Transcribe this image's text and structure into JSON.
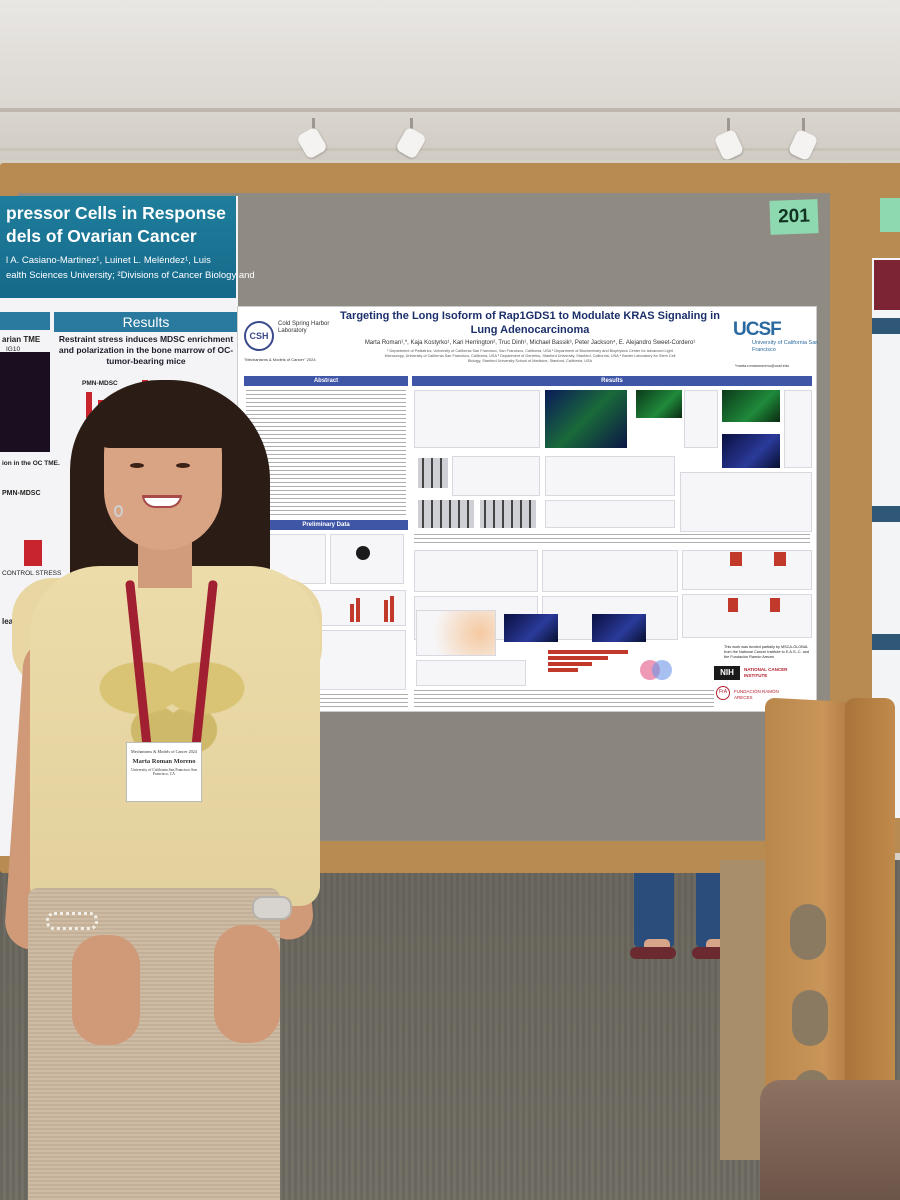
{
  "board": {
    "number": "201"
  },
  "left_poster": {
    "title_line1": "pressor Cells in Response",
    "title_line2": "dels of Ovarian Cancer",
    "authors": "l A. Casiano-Martinez¹, Luinet L. Meléndez¹, Luis",
    "affiliation": "ealth Sciences University; ²Divisions of Cancer Biology and",
    "results_label": "Results",
    "subhead": "Restraint stress induces MDSC enrichment and polarization in the bone marrow of OC-tumor-bearing mice",
    "side_label_1": "arian TME",
    "side_label_2": "IG10",
    "side_label_3": "PMN-MDSC",
    "side_label_4": "ion in the OC TME.",
    "side_label_5": "CONTROL  STRESS",
    "side_label_6": "lear M",
    "mid_label": "PMN-MDSC"
  },
  "poster": {
    "title": "Targeting the Long Isoform of Rap1GDS1 to Modulate KRAS Signaling in Lung Adenocarcinoma",
    "authors": "Marta Roman¹,*, Kaja Kostyrko¹, Kari Herrington², Truc Dinh¹, Michael Bassik³, Peter Jackson⁴, E. Alejandro Sweet-Cordero¹",
    "affiliations": "¹ Department of Pediatrics, University of California San Francisco, San Francisco, California, USA ² Department of Biochemistry and Biophysics Center for Advanced Light Microscopy, University of California San Francisco, California, USA ³ Department of Genetics, Stanford University, Stanford, California, USA ⁴ Baxter Laboratory for Stem Cell Biology, Stanford University School of Medicine, Stanford, California, USA",
    "csh_logo": "CSH",
    "csh_name": "Cold Spring Harbor Laboratory",
    "csh_meeting": "\"Mechanisms & Models of Cancer\" 2024",
    "ucsf_logo": "UCSF",
    "ucsf_name": "University of California San Francisco",
    "email": "*marta.romanmoreno@ucsf.edu",
    "abstract_label": "Abstract",
    "results_label": "Results",
    "preliminary_label": "Preliminary Data",
    "funding": "This work was funded partially by MSCA-GLOBAL from the National Cancer Institute to E.A.S.-C. and the Fundación Ramón Areces",
    "nih_label": "NIH",
    "nci_label": "NATIONAL CANCER INSTITUTE",
    "fra_logo": "FrA",
    "fra_label": "FUNDACIÓN RAMÓN ARECES"
  },
  "badge": {
    "event": "Mechanisms & Models of Cancer 2024",
    "name": "Marta Roman Moreno",
    "institution": "University of California San Francisco San Francisco, CA"
  },
  "colors": {
    "board_wood": "#b88b52",
    "poster_title_blue": "#1b2f6a",
    "left_poster_teal": "#1f7e9c",
    "lanyard_red": "#a01f30"
  }
}
